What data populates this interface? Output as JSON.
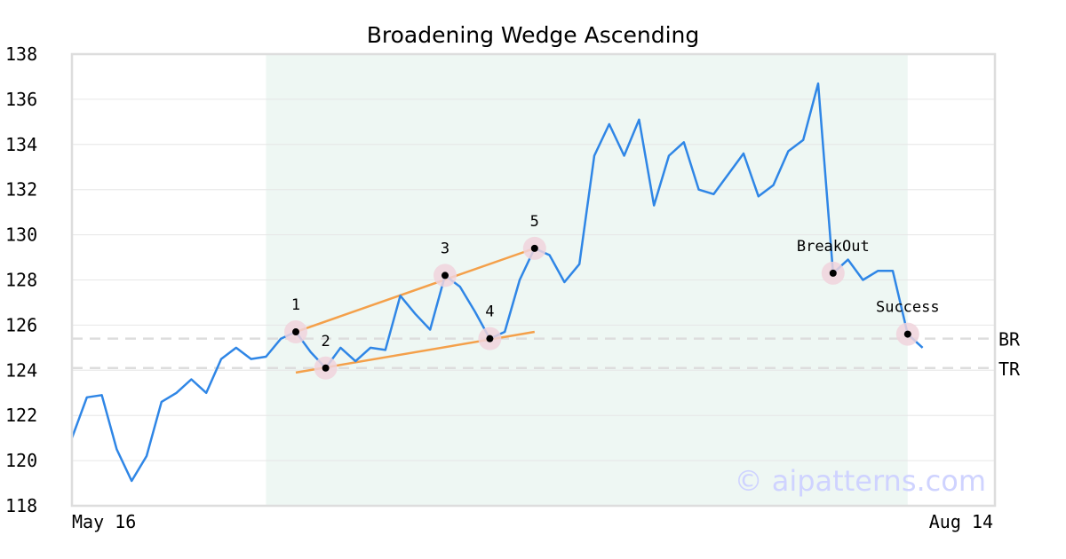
{
  "chart_data": {
    "type": "line",
    "title": "Broadening Wedge Ascending",
    "xlabel": "",
    "ylabel": "",
    "x_tick_labels": [
      "May 16",
      "Aug 14"
    ],
    "ylim": [
      118,
      138
    ],
    "yticks": [
      118,
      120,
      122,
      124,
      126,
      128,
      130,
      132,
      134,
      136,
      138
    ],
    "grid": "horizontal",
    "series": [
      {
        "color": "#2f86e6",
        "values": [
          121.0,
          122.8,
          122.9,
          120.5,
          119.1,
          120.2,
          122.6,
          123.0,
          123.6,
          123.0,
          124.5,
          125.0,
          124.5,
          124.6,
          125.4,
          125.7,
          124.8,
          124.1,
          125.0,
          124.4,
          125.0,
          124.9,
          127.3,
          126.5,
          125.8,
          128.2,
          127.7,
          126.6,
          125.4,
          125.7,
          128.0,
          129.4,
          129.1,
          127.9,
          128.7,
          133.5,
          134.9,
          133.5,
          135.1,
          131.3,
          133.5,
          134.1,
          132.0,
          131.8,
          132.7,
          133.6,
          131.7,
          132.2,
          133.7,
          134.2,
          136.7,
          128.3,
          128.9,
          128.0,
          128.4,
          128.4,
          125.6,
          125.0
        ]
      }
    ],
    "shaded_region": {
      "from_index": 13,
      "to_index": 56,
      "color": "#eef7f3"
    },
    "pattern_points": [
      {
        "label": "1",
        "index": 15,
        "value": 125.7
      },
      {
        "label": "2",
        "index": 17,
        "value": 124.1
      },
      {
        "label": "3",
        "index": 25,
        "value": 128.2
      },
      {
        "label": "4",
        "index": 28,
        "value": 125.4
      },
      {
        "label": "5",
        "index": 31,
        "value": 129.4
      },
      {
        "label": "BreakOut",
        "index": 51,
        "value": 128.3
      },
      {
        "label": "Success",
        "index": 56,
        "value": 125.6
      }
    ],
    "trendlines": [
      {
        "color": "#f4a04a",
        "from": {
          "index": 15,
          "value": 125.7
        },
        "to": {
          "index": 31,
          "value": 129.4
        }
      },
      {
        "color": "#f4a04a",
        "from": {
          "index": 15,
          "value": 123.9
        },
        "to": {
          "index": 31,
          "value": 125.7
        }
      }
    ],
    "hlines": [
      {
        "label": "BR",
        "value": 125.4,
        "color": "#dddddd"
      },
      {
        "label": "TR",
        "value": 124.1,
        "color": "#dddddd"
      }
    ],
    "watermark": "© aipatterns.com",
    "colors": {
      "marker_halo": "#f0d4dc",
      "marker_dot": "#000000",
      "watermark": "#cfd3ff"
    }
  }
}
